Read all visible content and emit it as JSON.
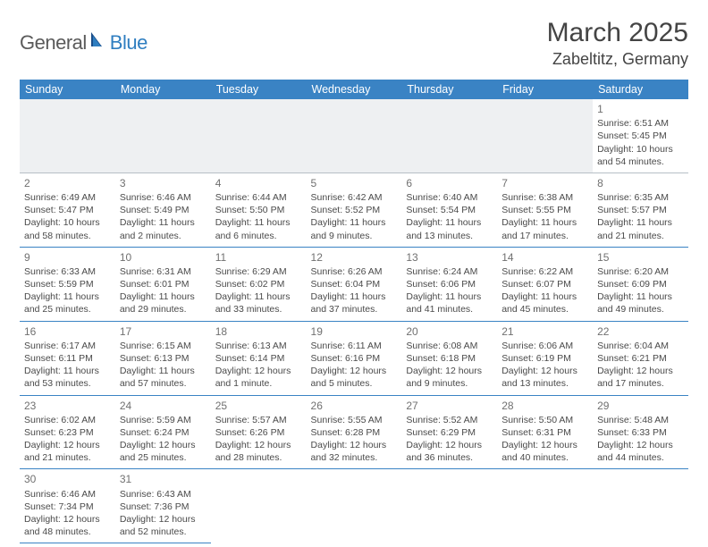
{
  "logo": {
    "gen": "General",
    "blue": "Blue"
  },
  "title": "March 2025",
  "location": "Zabeltitz, Germany",
  "colors": {
    "header_bg": "#3a83c4",
    "header_fg": "#ffffff",
    "border": "#3a83c4",
    "blank_bg": "#eef0f2",
    "logo_blue": "#2f7ec0",
    "logo_grey": "#5a5a5a",
    "text": "#4a4a4a"
  },
  "weekdays": [
    "Sunday",
    "Monday",
    "Tuesday",
    "Wednesday",
    "Thursday",
    "Friday",
    "Saturday"
  ],
  "weeks": [
    [
      null,
      null,
      null,
      null,
      null,
      null,
      {
        "n": "1",
        "sr": "6:51 AM",
        "ss": "5:45 PM",
        "dl": "10 hours and 54 minutes."
      }
    ],
    [
      {
        "n": "2",
        "sr": "6:49 AM",
        "ss": "5:47 PM",
        "dl": "10 hours and 58 minutes."
      },
      {
        "n": "3",
        "sr": "6:46 AM",
        "ss": "5:49 PM",
        "dl": "11 hours and 2 minutes."
      },
      {
        "n": "4",
        "sr": "6:44 AM",
        "ss": "5:50 PM",
        "dl": "11 hours and 6 minutes."
      },
      {
        "n": "5",
        "sr": "6:42 AM",
        "ss": "5:52 PM",
        "dl": "11 hours and 9 minutes."
      },
      {
        "n": "6",
        "sr": "6:40 AM",
        "ss": "5:54 PM",
        "dl": "11 hours and 13 minutes."
      },
      {
        "n": "7",
        "sr": "6:38 AM",
        "ss": "5:55 PM",
        "dl": "11 hours and 17 minutes."
      },
      {
        "n": "8",
        "sr": "6:35 AM",
        "ss": "5:57 PM",
        "dl": "11 hours and 21 minutes."
      }
    ],
    [
      {
        "n": "9",
        "sr": "6:33 AM",
        "ss": "5:59 PM",
        "dl": "11 hours and 25 minutes."
      },
      {
        "n": "10",
        "sr": "6:31 AM",
        "ss": "6:01 PM",
        "dl": "11 hours and 29 minutes."
      },
      {
        "n": "11",
        "sr": "6:29 AM",
        "ss": "6:02 PM",
        "dl": "11 hours and 33 minutes."
      },
      {
        "n": "12",
        "sr": "6:26 AM",
        "ss": "6:04 PM",
        "dl": "11 hours and 37 minutes."
      },
      {
        "n": "13",
        "sr": "6:24 AM",
        "ss": "6:06 PM",
        "dl": "11 hours and 41 minutes."
      },
      {
        "n": "14",
        "sr": "6:22 AM",
        "ss": "6:07 PM",
        "dl": "11 hours and 45 minutes."
      },
      {
        "n": "15",
        "sr": "6:20 AM",
        "ss": "6:09 PM",
        "dl": "11 hours and 49 minutes."
      }
    ],
    [
      {
        "n": "16",
        "sr": "6:17 AM",
        "ss": "6:11 PM",
        "dl": "11 hours and 53 minutes."
      },
      {
        "n": "17",
        "sr": "6:15 AM",
        "ss": "6:13 PM",
        "dl": "11 hours and 57 minutes."
      },
      {
        "n": "18",
        "sr": "6:13 AM",
        "ss": "6:14 PM",
        "dl": "12 hours and 1 minute."
      },
      {
        "n": "19",
        "sr": "6:11 AM",
        "ss": "6:16 PM",
        "dl": "12 hours and 5 minutes."
      },
      {
        "n": "20",
        "sr": "6:08 AM",
        "ss": "6:18 PM",
        "dl": "12 hours and 9 minutes."
      },
      {
        "n": "21",
        "sr": "6:06 AM",
        "ss": "6:19 PM",
        "dl": "12 hours and 13 minutes."
      },
      {
        "n": "22",
        "sr": "6:04 AM",
        "ss": "6:21 PM",
        "dl": "12 hours and 17 minutes."
      }
    ],
    [
      {
        "n": "23",
        "sr": "6:02 AM",
        "ss": "6:23 PM",
        "dl": "12 hours and 21 minutes."
      },
      {
        "n": "24",
        "sr": "5:59 AM",
        "ss": "6:24 PM",
        "dl": "12 hours and 25 minutes."
      },
      {
        "n": "25",
        "sr": "5:57 AM",
        "ss": "6:26 PM",
        "dl": "12 hours and 28 minutes."
      },
      {
        "n": "26",
        "sr": "5:55 AM",
        "ss": "6:28 PM",
        "dl": "12 hours and 32 minutes."
      },
      {
        "n": "27",
        "sr": "5:52 AM",
        "ss": "6:29 PM",
        "dl": "12 hours and 36 minutes."
      },
      {
        "n": "28",
        "sr": "5:50 AM",
        "ss": "6:31 PM",
        "dl": "12 hours and 40 minutes."
      },
      {
        "n": "29",
        "sr": "5:48 AM",
        "ss": "6:33 PM",
        "dl": "12 hours and 44 minutes."
      }
    ],
    [
      {
        "n": "30",
        "sr": "6:46 AM",
        "ss": "7:34 PM",
        "dl": "12 hours and 48 minutes."
      },
      {
        "n": "31",
        "sr": "6:43 AM",
        "ss": "7:36 PM",
        "dl": "12 hours and 52 minutes."
      },
      null,
      null,
      null,
      null,
      null
    ]
  ],
  "labels": {
    "sunrise": "Sunrise:",
    "sunset": "Sunset:",
    "daylight": "Daylight:"
  }
}
